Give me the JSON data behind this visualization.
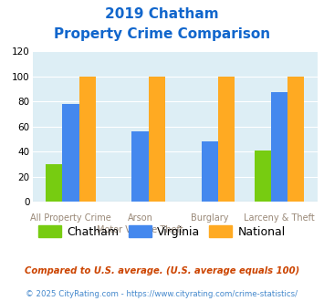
{
  "title_line1": "2019 Chatham",
  "title_line2": "Property Crime Comparison",
  "x_labels_row1": [
    "All Property Crime",
    "Arson",
    "Burglary",
    "Larceny & Theft"
  ],
  "x_labels_row2": [
    "",
    "Motor Vehicle Theft",
    "",
    ""
  ],
  "chatham_values": [
    30,
    0,
    0,
    41
  ],
  "virginia_values": [
    78,
    56,
    48,
    87
  ],
  "national_values": [
    100,
    100,
    100,
    100
  ],
  "chatham_color": "#77cc11",
  "virginia_color": "#4488ee",
  "national_color": "#ffaa22",
  "bg_color": "#ddeef5",
  "ylim": [
    0,
    120
  ],
  "yticks": [
    0,
    20,
    40,
    60,
    80,
    100,
    120
  ],
  "legend_labels": [
    "Chatham",
    "Virginia",
    "National"
  ],
  "footnote1": "Compared to U.S. average. (U.S. average equals 100)",
  "footnote2": "© 2025 CityRating.com - https://www.cityrating.com/crime-statistics/",
  "title_color": "#1166cc",
  "x_label_color": "#998877",
  "footnote1_color": "#cc4400",
  "footnote2_color": "#4488cc"
}
